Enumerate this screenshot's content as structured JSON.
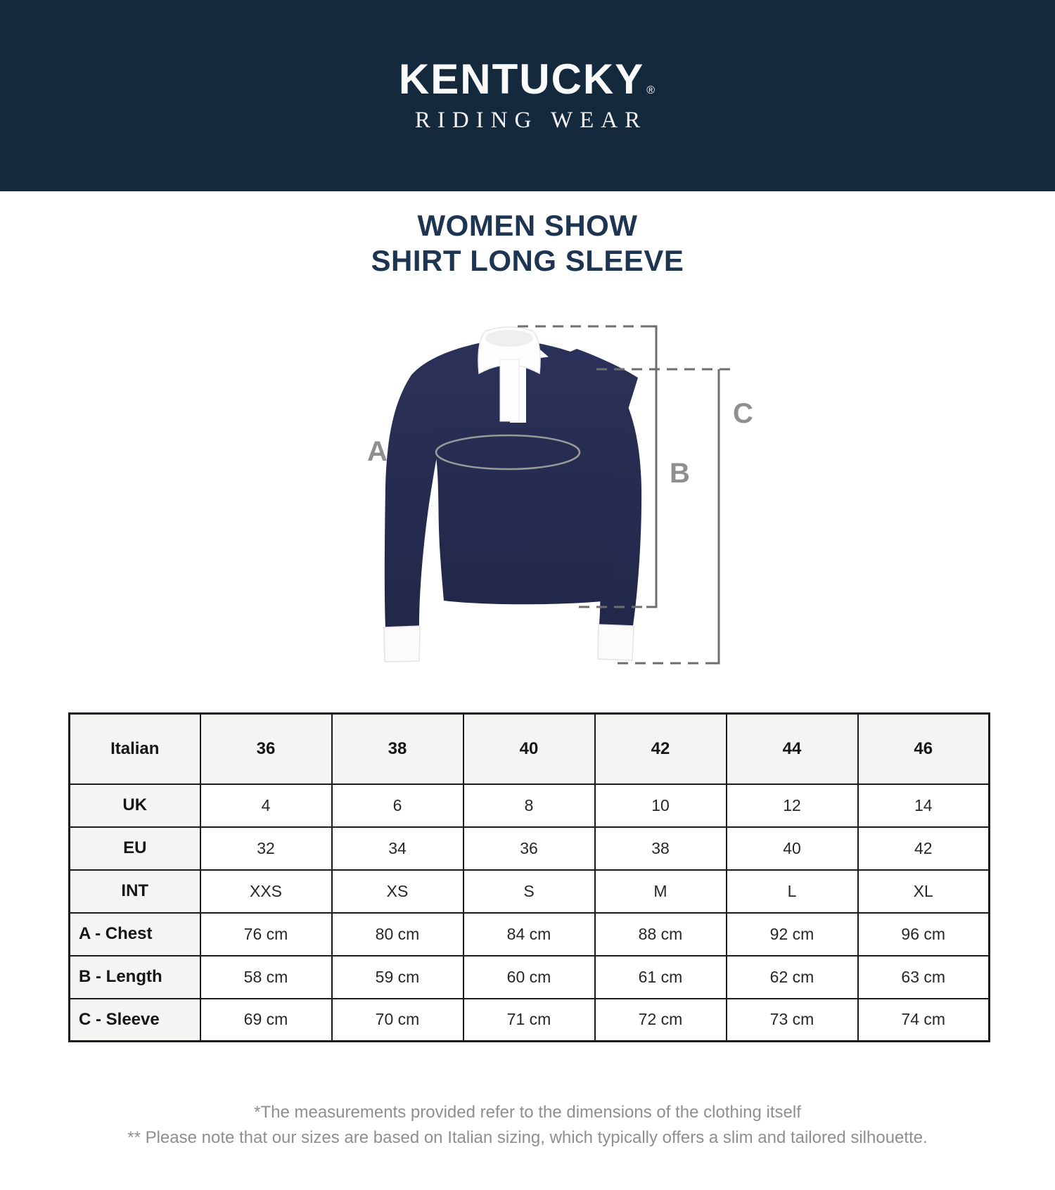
{
  "brand": {
    "name": "KENTUCKY",
    "registered_mark": "®",
    "tagline": "RIDING WEAR"
  },
  "product": {
    "title_line1": "WOMEN SHOW",
    "title_line2": "SHIRT LONG SLEEVE"
  },
  "diagram": {
    "labels": {
      "chest": "A",
      "length": "B",
      "sleeve": "C"
    }
  },
  "chart_data": {
    "type": "table",
    "rows": [
      {
        "label": "Italian",
        "values": [
          "36",
          "38",
          "40",
          "42",
          "44",
          "46"
        ]
      },
      {
        "label": "UK",
        "values": [
          "4",
          "6",
          "8",
          "10",
          "12",
          "14"
        ]
      },
      {
        "label": "EU",
        "values": [
          "32",
          "34",
          "36",
          "38",
          "40",
          "42"
        ]
      },
      {
        "label": "INT",
        "values": [
          "XXS",
          "XS",
          "S",
          "M",
          "L",
          "XL"
        ]
      },
      {
        "label": "A - Chest",
        "values": [
          "76 cm",
          "80 cm",
          "84 cm",
          "88 cm",
          "92 cm",
          "96 cm"
        ]
      },
      {
        "label": "B - Length",
        "values": [
          "58 cm",
          "59 cm",
          "60 cm",
          "61 cm",
          "62 cm",
          "63 cm"
        ]
      },
      {
        "label": "C - Sleeve",
        "values": [
          "69 cm",
          "70 cm",
          "71 cm",
          "72 cm",
          "73 cm",
          "74 cm"
        ]
      }
    ]
  },
  "footnotes": {
    "line1": "*The measurements provided refer to the dimensions of the clothing itself",
    "line2": "** Please note that our sizes are based on Italian sizing, which typically offers a slim and tailored silhouette."
  },
  "colors": {
    "banner_bg": "#15293d",
    "title_text": "#1d3550",
    "shirt_navy": "#262c52",
    "measure_line_gray": "#6e6e6e",
    "measure_label_gray": "#8f8f8f",
    "table_border": "#1b1b1b",
    "cell_gray": "#f4f4f2",
    "footnote_gray": "#8f8f8f"
  }
}
